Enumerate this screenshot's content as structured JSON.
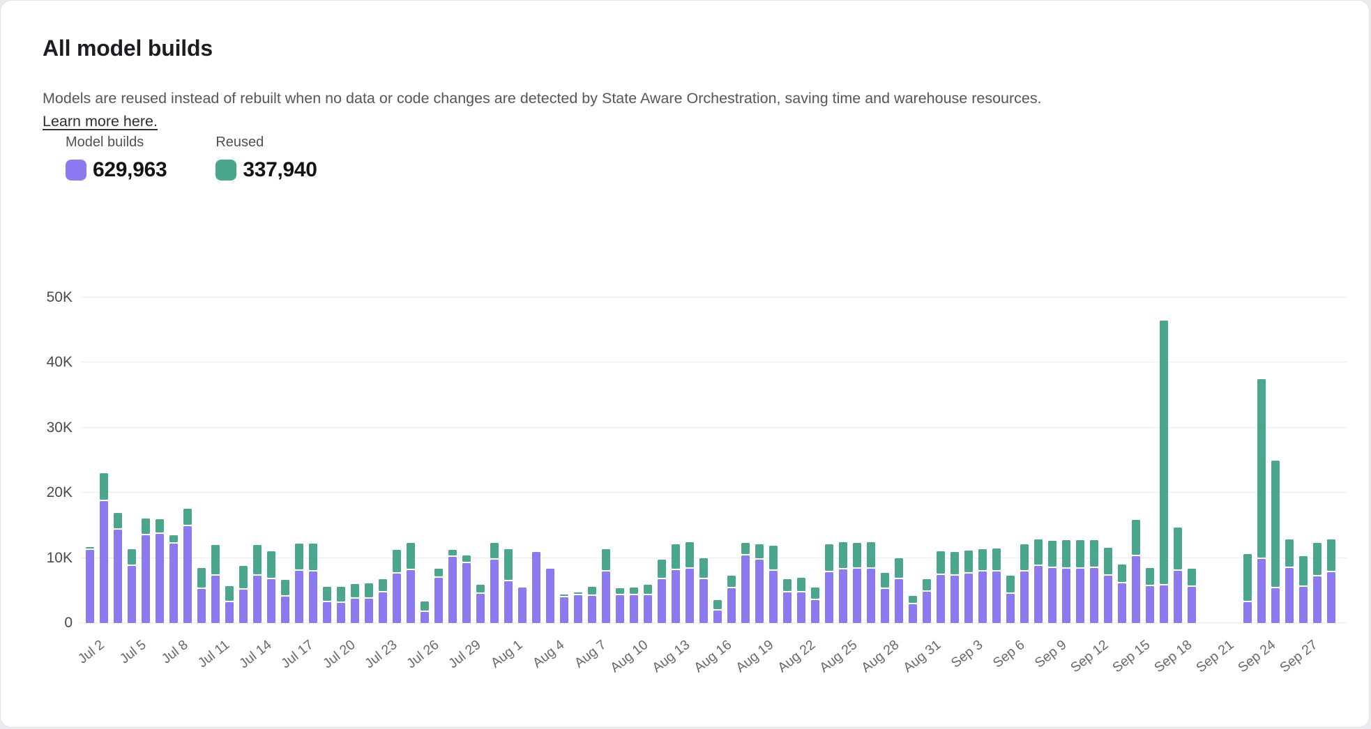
{
  "page": {
    "title": "All model builds",
    "description_text": "Models are reused instead of rebuilt when no data or code changes are detected by State Aware Orchestration, saving time and warehouse resources.",
    "link_label": "Learn more here."
  },
  "legend": {
    "items": [
      {
        "label": "Model builds",
        "value": "629,963",
        "color": "#8b7af2"
      },
      {
        "label": "Reused",
        "value": "337,940",
        "color": "#4aa68c"
      }
    ]
  },
  "chart_data": {
    "type": "bar",
    "stacked": true,
    "title": "All model builds",
    "xlabel": "",
    "ylabel": "",
    "values_unit": "thousands",
    "ylim": [
      0,
      50
    ],
    "y_tick_labels": [
      "0",
      "10K",
      "20K",
      "30K",
      "40K",
      "50K"
    ],
    "grid": "horizontal",
    "legend_position": "top-left",
    "x_tick_every": 3,
    "series_names": [
      "Model builds",
      "Reused"
    ],
    "colors": {
      "model_builds": "#8b7af2",
      "reused": "#4aa68c",
      "gridline": "#ececef"
    },
    "bars": [
      {
        "date": "Jul 2",
        "model_builds": 11.2,
        "reused": 0.3
      },
      {
        "date": "Jul 3",
        "model_builds": 18.7,
        "reused": 4.3
      },
      {
        "date": "Jul 4",
        "model_builds": 14.3,
        "reused": 2.6
      },
      {
        "date": "Jul 5",
        "model_builds": 8.8,
        "reused": 2.6
      },
      {
        "date": "Jul 6",
        "model_builds": 13.5,
        "reused": 2.6
      },
      {
        "date": "Jul 7",
        "model_builds": 13.7,
        "reused": 2.3
      },
      {
        "date": "Jul 8",
        "model_builds": 12.2,
        "reused": 1.3
      },
      {
        "date": "Jul 9",
        "model_builds": 14.9,
        "reused": 2.7
      },
      {
        "date": "Jul 10",
        "model_builds": 5.3,
        "reused": 3.2
      },
      {
        "date": "Jul 11",
        "model_builds": 7.3,
        "reused": 4.7
      },
      {
        "date": "Jul 12",
        "model_builds": 3.2,
        "reused": 2.5
      },
      {
        "date": "Jul 13",
        "model_builds": 5.1,
        "reused": 3.7
      },
      {
        "date": "Jul 14",
        "model_builds": 7.3,
        "reused": 4.7
      },
      {
        "date": "Jul 15",
        "model_builds": 6.8,
        "reused": 4.2
      },
      {
        "date": "Jul 16",
        "model_builds": 4.1,
        "reused": 2.5
      },
      {
        "date": "Jul 17",
        "model_builds": 8.0,
        "reused": 4.2
      },
      {
        "date": "Jul 18",
        "model_builds": 7.9,
        "reused": 4.3
      },
      {
        "date": "Jul 19",
        "model_builds": 3.2,
        "reused": 2.4
      },
      {
        "date": "Jul 20",
        "model_builds": 3.1,
        "reused": 2.5
      },
      {
        "date": "Jul 21",
        "model_builds": 3.7,
        "reused": 2.3
      },
      {
        "date": "Jul 22",
        "model_builds": 3.8,
        "reused": 2.3
      },
      {
        "date": "Jul 23",
        "model_builds": 4.7,
        "reused": 2.1
      },
      {
        "date": "Jul 24",
        "model_builds": 7.6,
        "reused": 3.6
      },
      {
        "date": "Jul 25",
        "model_builds": 8.1,
        "reused": 4.2
      },
      {
        "date": "Jul 26",
        "model_builds": 1.7,
        "reused": 1.6
      },
      {
        "date": "Jul 27",
        "model_builds": 7.0,
        "reused": 1.4
      },
      {
        "date": "Jul 28",
        "model_builds": 10.2,
        "reused": 1.0
      },
      {
        "date": "Jul 29",
        "model_builds": 9.2,
        "reused": 1.2
      },
      {
        "date": "Jul 30",
        "model_builds": 4.5,
        "reused": 1.4
      },
      {
        "date": "Jul 31",
        "model_builds": 9.7,
        "reused": 2.6
      },
      {
        "date": "Aug 1",
        "model_builds": 6.4,
        "reused": 5.0
      },
      {
        "date": "Aug 2",
        "model_builds": 5.5,
        "reused": 0
      },
      {
        "date": "Aug 3",
        "model_builds": 10.9,
        "reused": 0
      },
      {
        "date": "Aug 4",
        "model_builds": 8.4,
        "reused": 0
      },
      {
        "date": "Aug 5",
        "model_builds": 4.0,
        "reused": 0.2
      },
      {
        "date": "Aug 6",
        "model_builds": 4.3,
        "reused": 0.3
      },
      {
        "date": "Aug 7",
        "model_builds": 4.2,
        "reused": 1.4
      },
      {
        "date": "Aug 8",
        "model_builds": 7.9,
        "reused": 3.4
      },
      {
        "date": "Aug 9",
        "model_builds": 4.3,
        "reused": 1.1
      },
      {
        "date": "Aug 10",
        "model_builds": 4.3,
        "reused": 1.2
      },
      {
        "date": "Aug 11",
        "model_builds": 4.3,
        "reused": 1.6
      },
      {
        "date": "Aug 12",
        "model_builds": 6.8,
        "reused": 2.9
      },
      {
        "date": "Aug 13",
        "model_builds": 8.1,
        "reused": 4.0
      },
      {
        "date": "Aug 14",
        "model_builds": 8.3,
        "reused": 4.1
      },
      {
        "date": "Aug 15",
        "model_builds": 6.7,
        "reused": 3.3
      },
      {
        "date": "Aug 16",
        "model_builds": 1.9,
        "reused": 1.6
      },
      {
        "date": "Aug 17",
        "model_builds": 5.4,
        "reused": 1.9
      },
      {
        "date": "Aug 18",
        "model_builds": 10.4,
        "reused": 1.9
      },
      {
        "date": "Aug 19",
        "model_builds": 9.7,
        "reused": 2.4
      },
      {
        "date": "Aug 20",
        "model_builds": 8.0,
        "reused": 3.9
      },
      {
        "date": "Aug 21",
        "model_builds": 4.7,
        "reused": 2.1
      },
      {
        "date": "Aug 22",
        "model_builds": 4.7,
        "reused": 2.3
      },
      {
        "date": "Aug 23",
        "model_builds": 3.5,
        "reused": 2.0
      },
      {
        "date": "Aug 24",
        "model_builds": 7.8,
        "reused": 4.3
      },
      {
        "date": "Aug 25",
        "model_builds": 8.2,
        "reused": 4.2
      },
      {
        "date": "Aug 26",
        "model_builds": 8.3,
        "reused": 4.0
      },
      {
        "date": "Aug 27",
        "model_builds": 8.3,
        "reused": 4.1
      },
      {
        "date": "Aug 28",
        "model_builds": 5.3,
        "reused": 2.4
      },
      {
        "date": "Aug 29",
        "model_builds": 6.8,
        "reused": 3.2
      },
      {
        "date": "Aug 30",
        "model_builds": 2.9,
        "reused": 1.3
      },
      {
        "date": "Aug 31",
        "model_builds": 4.8,
        "reused": 1.9
      },
      {
        "date": "Sep 1",
        "model_builds": 7.4,
        "reused": 3.6
      },
      {
        "date": "Sep 2",
        "model_builds": 7.3,
        "reused": 3.6
      },
      {
        "date": "Sep 3",
        "model_builds": 7.6,
        "reused": 3.5
      },
      {
        "date": "Sep 4",
        "model_builds": 7.9,
        "reused": 3.4
      },
      {
        "date": "Sep 5",
        "model_builds": 7.9,
        "reused": 3.6
      },
      {
        "date": "Sep 6",
        "model_builds": 4.5,
        "reused": 2.8
      },
      {
        "date": "Sep 7",
        "model_builds": 7.9,
        "reused": 4.2
      },
      {
        "date": "Sep 8",
        "model_builds": 8.8,
        "reused": 4.0
      },
      {
        "date": "Sep 9",
        "model_builds": 8.5,
        "reused": 4.1
      },
      {
        "date": "Sep 10",
        "model_builds": 8.4,
        "reused": 4.3
      },
      {
        "date": "Sep 11",
        "model_builds": 8.4,
        "reused": 4.3
      },
      {
        "date": "Sep 12",
        "model_builds": 8.5,
        "reused": 4.2
      },
      {
        "date": "Sep 13",
        "model_builds": 7.3,
        "reused": 4.3
      },
      {
        "date": "Sep 14",
        "model_builds": 6.1,
        "reused": 2.9
      },
      {
        "date": "Sep 15",
        "model_builds": 10.3,
        "reused": 5.6
      },
      {
        "date": "Sep 16",
        "model_builds": 5.7,
        "reused": 2.8
      },
      {
        "date": "Sep 17",
        "model_builds": 5.8,
        "reused": 40.7
      },
      {
        "date": "Sep 18",
        "model_builds": 8.0,
        "reused": 6.7
      },
      {
        "date": "Sep 19",
        "model_builds": 5.6,
        "reused": 2.8
      },
      {
        "date": "Sep 20",
        "model_builds": null,
        "reused": null
      },
      {
        "date": "Sep 21",
        "model_builds": null,
        "reused": null
      },
      {
        "date": "Sep 22",
        "model_builds": null,
        "reused": null
      },
      {
        "date": "Sep 23",
        "model_builds": 3.2,
        "reused": 7.4
      },
      {
        "date": "Sep 24",
        "model_builds": 9.9,
        "reused": 27.6
      },
      {
        "date": "Sep 25",
        "model_builds": 5.4,
        "reused": 19.6
      },
      {
        "date": "Sep 26",
        "model_builds": 8.5,
        "reused": 4.3
      },
      {
        "date": "Sep 27",
        "model_builds": 5.6,
        "reused": 4.7
      },
      {
        "date": "Sep 28",
        "model_builds": 7.2,
        "reused": 5.1
      },
      {
        "date": "Sep 29",
        "model_builds": 7.8,
        "reused": 5.1
      }
    ]
  }
}
